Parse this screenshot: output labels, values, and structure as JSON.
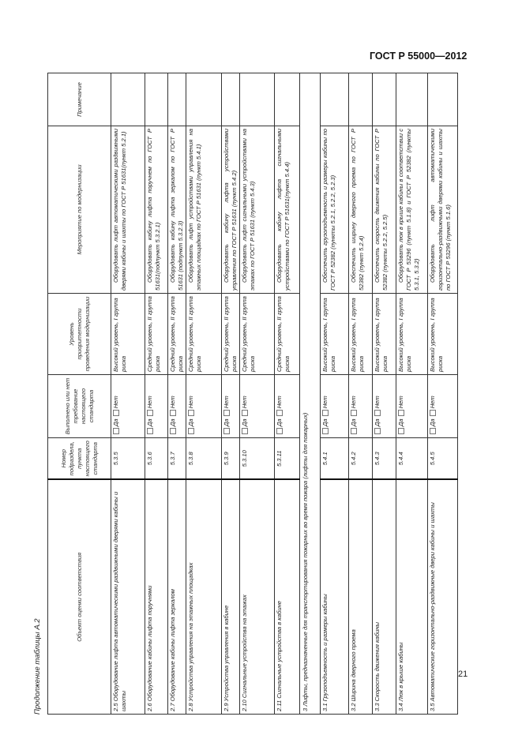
{
  "header": {
    "doc_id": "ГОСТ Р 55000—2012"
  },
  "caption": "Продолжение таблицы А.2",
  "page_number": "21",
  "table": {
    "columns": [
      "Объект оценки соответствия",
      "Номер подраздела, пункта настоящего стандарта",
      "Выполнено или нет требование настоящего стандарта",
      "Уровень приоритетности проведения модернизации",
      "Мероприятие по модернизации",
      "Примечание"
    ],
    "yes_label": "Да",
    "no_label": "Нет",
    "rows": [
      {
        "object": "2.5 Оборудование лифта автоматическими раздвижными дверями кабины и шахты",
        "num": "5.3.5",
        "level": "Высокий уровень, I группа риска",
        "action": "Оборудовать лифт автоматическими раздвижными дверями кабины и шахты по ГОСТ Р 51631(пункт 5.2.1)",
        "note": ""
      },
      {
        "object": "2.6 Оборудование кабины лифта поручнями",
        "num": "5.3.6",
        "level": "Средний уровень, II группа риска",
        "action": "Оборудовать кабину лифта поручнем по ГОСТ Р 51631(подпункт 5.3.2.1)",
        "note": ""
      },
      {
        "object": "2.7 Оборудование кабины лифта зеркалом",
        "num": "5.3.7",
        "level": "Средний уровень, II группа риска",
        "action": "Оборудовать кабину лифта зеркалом по ГОСТ Р 51631 (подпункт 5.3.2.3)",
        "note": ""
      },
      {
        "object": "2.8 Устройства управления на этажных площадках",
        "num": "5.3.8",
        "level": "Средний уровень, II группа риска",
        "action": "Оборудовать лифт устройствами управления на этажных площадках по ГОСТ Р 51631 (пункт 5.4.1)",
        "note": ""
      },
      {
        "object": "2.9 Устройства управления в кабине",
        "num": "5.3.9",
        "level": "Средний уровень, II группа риска",
        "action": "Оборудовать кабину лифта устройствами управления по ГОСТ Р 51631 (пункт 5.4.2)",
        "note": ""
      },
      {
        "object": "2.10 Сигнальные устройства на этажах",
        "num": "5.3.10",
        "level": "Средний уровень, II группа риска",
        "action": "Оборудовать лифт сигнальными устройствами на этажах по ГОСТ Р 51631 (пункт 5.4.3)",
        "note": ""
      },
      {
        "object": "2.11 Сигнальные устройства в кабине",
        "num": "5.3.11",
        "level": "Средний уровень, II группа риска",
        "action": "Оборудовать кабину лифта сигнальными устройствами по ГОСТ Р 51631(пункт 5.4.4)",
        "note": ""
      }
    ],
    "section": "3 Лифты, предназначенные для транспортирования пожарных во время пожара (лифты для пожарных)",
    "rows2": [
      {
        "object": "3.1 Грузоподъемность и размеры кабины",
        "num": "5.4.1",
        "level": "Высокий уровень, I группа риска",
        "action": "Обеспечить грузоподъемность и размеры кабины по ГОСТ Р 52382 (пункты 5.2.1, 5.2.2, 5.2.3)",
        "note": ""
      },
      {
        "object": "3.2 Ширина дверного проема",
        "num": "5.4.2",
        "level": "Высокий уровень, I группа риска",
        "action": "Обеспечить ширину дверного проема по ГОСТ Р 52382 (пункт 5.2.4)",
        "note": ""
      },
      {
        "object": "3.3 Скорость движения кабины",
        "num": "5.4.3",
        "level": "Высокий уровень, I группа риска",
        "action": "Обеспечить скорость движения кабины по ГОСТ Р 52382 (пункты 5.2.2, 5.2.5)",
        "note": ""
      },
      {
        "object": "3.4 Люк в крыше кабины",
        "num": "5.4.4",
        "level": "Высокий уровень, I группа риска",
        "action": "Оборудовать люк в крыше кабины в соответствии с ГОСТ Р 53296 (пункт 5.1.8) и ГОСТ Р 52382 (пункты 5.3.1, 5.3.2)",
        "note": ""
      },
      {
        "object": "3.5 Автоматические горизонтально-раздвижные двери кабины и шахты",
        "num": "5.4.5",
        "level": "Высокий уровень, I группа риска",
        "action": "Оборудовать лифт автоматическими горизонтально-раздвижными дверями кабины и шахты по ГОСТ Р 53296 (пункт 5.1.6)",
        "note": ""
      }
    ]
  }
}
